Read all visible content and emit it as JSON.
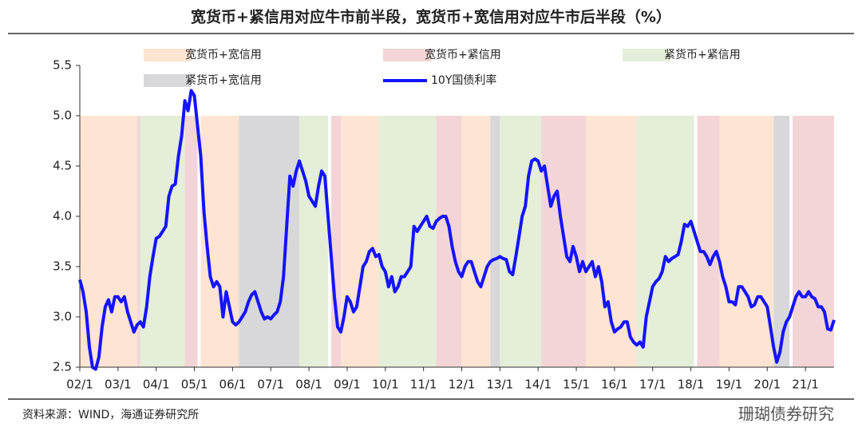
{
  "chart_data": {
    "type": "line",
    "title": "宽货币+紧信用对应牛市前半段，宽货币+宽信用对应牛市后半段（%）",
    "source": "资料来源：WIND，海通证券研究所",
    "watermark": "珊瑚债券研究",
    "categories": [
      "02/1",
      null,
      null,
      null,
      null,
      null,
      null,
      null,
      null,
      null,
      null,
      null,
      "03/1",
      null,
      null,
      null,
      null,
      null,
      null,
      null,
      null,
      null,
      null,
      null,
      "04/1",
      null,
      null,
      null,
      null,
      null,
      null,
      null,
      null,
      null,
      null,
      null,
      "05/1",
      null,
      null,
      null,
      null,
      null,
      null,
      null,
      null,
      null,
      null,
      null,
      "06/1",
      null,
      null,
      null,
      null,
      null,
      null,
      null,
      null,
      null,
      null,
      null,
      "07/1",
      null,
      null,
      null,
      null,
      null,
      null,
      null,
      null,
      null,
      null,
      null,
      "08/1",
      null,
      null,
      null,
      null,
      null,
      null,
      null,
      null,
      null,
      null,
      null,
      "09/1",
      null,
      null,
      null,
      null,
      null,
      null,
      null,
      null,
      null,
      null,
      null,
      "10/1",
      null,
      null,
      null,
      null,
      null,
      null,
      null,
      null,
      null,
      null,
      null,
      "11/1",
      null,
      null,
      null,
      null,
      null,
      null,
      null,
      null,
      null,
      null,
      null,
      "12/1",
      null,
      null,
      null,
      null,
      null,
      null,
      null,
      null,
      null,
      null,
      null,
      "13/1",
      null,
      null,
      null,
      null,
      null,
      null,
      null,
      null,
      null,
      null,
      null,
      "14/1",
      null,
      null,
      null,
      null,
      null,
      null,
      null,
      null,
      null,
      null,
      null,
      "15/1",
      null,
      null,
      null,
      null,
      null,
      null,
      null,
      null,
      null,
      null,
      null,
      "16/1",
      null,
      null,
      null,
      null,
      null,
      null,
      null,
      null,
      null,
      null,
      null,
      "17/1",
      null,
      null,
      null,
      null,
      null,
      null,
      null,
      null,
      null,
      null,
      null,
      "18/1",
      null,
      null,
      null,
      null,
      null,
      null,
      null,
      null,
      null,
      null,
      null,
      "19/1",
      null,
      null,
      null,
      null,
      null,
      null,
      null,
      null,
      null,
      null,
      null,
      "20/1",
      null,
      null,
      null,
      null,
      null,
      null,
      null,
      null,
      null,
      null,
      null,
      "21/1",
      null,
      null,
      null,
      null,
      null,
      null,
      null,
      null,
      null
    ],
    "series": [
      {
        "name": "10Y国债利率",
        "color": "#1414ff",
        "values": [
          3.37,
          3.25,
          3.05,
          2.7,
          2.5,
          2.48,
          2.6,
          2.9,
          3.1,
          3.17,
          3.05,
          3.2,
          3.2,
          3.15,
          3.2,
          3.05,
          2.95,
          2.85,
          2.92,
          2.95,
          2.9,
          3.1,
          3.4,
          3.6,
          3.78,
          3.8,
          3.85,
          3.9,
          4.2,
          4.3,
          4.32,
          4.6,
          4.8,
          5.15,
          5.05,
          5.25,
          5.2,
          4.9,
          4.6,
          4.05,
          3.7,
          3.4,
          3.3,
          3.35,
          3.3,
          3.0,
          3.25,
          3.1,
          2.95,
          2.92,
          2.95,
          3.0,
          3.05,
          3.15,
          3.22,
          3.25,
          3.15,
          3.05,
          2.98,
          3.0,
          2.98,
          3.02,
          3.05,
          3.15,
          3.4,
          3.9,
          4.4,
          4.3,
          4.45,
          4.55,
          4.45,
          4.35,
          4.2,
          4.15,
          4.1,
          4.3,
          4.45,
          4.4,
          4.0,
          3.6,
          3.2,
          2.9,
          2.85,
          3.0,
          3.2,
          3.15,
          3.05,
          3.1,
          3.3,
          3.5,
          3.55,
          3.65,
          3.68,
          3.6,
          3.62,
          3.5,
          3.45,
          3.3,
          3.4,
          3.25,
          3.3,
          3.4,
          3.4,
          3.45,
          3.5,
          3.9,
          3.85,
          3.9,
          3.95,
          4.0,
          3.9,
          3.88,
          3.95,
          3.98,
          4.0,
          4.0,
          3.9,
          3.7,
          3.55,
          3.45,
          3.4,
          3.5,
          3.55,
          3.55,
          3.45,
          3.35,
          3.3,
          3.4,
          3.5,
          3.55,
          3.57,
          3.58,
          3.6,
          3.58,
          3.57,
          3.45,
          3.42,
          3.6,
          3.8,
          4.0,
          4.1,
          4.4,
          4.55,
          4.57,
          4.55,
          4.45,
          4.5,
          4.3,
          4.1,
          4.2,
          4.25,
          4.0,
          3.8,
          3.6,
          3.55,
          3.7,
          3.6,
          3.45,
          3.55,
          3.45,
          3.5,
          3.55,
          3.4,
          3.5,
          3.35,
          3.1,
          3.15,
          2.95,
          2.85,
          2.88,
          2.9,
          2.95,
          2.95,
          2.8,
          2.75,
          2.72,
          2.75,
          2.7,
          3.0,
          3.15,
          3.3,
          3.35,
          3.38,
          3.45,
          3.6,
          3.55,
          3.58,
          3.6,
          3.62,
          3.75,
          3.92,
          3.9,
          3.95,
          3.85,
          3.75,
          3.65,
          3.65,
          3.6,
          3.52,
          3.6,
          3.65,
          3.55,
          3.4,
          3.3,
          3.15,
          3.15,
          3.12,
          3.3,
          3.3,
          3.25,
          3.2,
          3.1,
          3.12,
          3.2,
          3.2,
          3.15,
          3.1,
          2.9,
          2.7,
          2.55,
          2.65,
          2.85,
          2.95,
          3.0,
          3.1,
          3.2,
          3.25,
          3.2,
          3.2,
          3.25,
          3.2,
          3.18,
          3.1,
          3.1,
          3.05,
          2.88,
          2.87,
          2.97
        ]
      }
    ],
    "regimes": [
      {
        "name": "宽货币+宽信用",
        "color": "#fde4d3"
      },
      {
        "name": "宽货币+紧信用",
        "color": "#f3d5d7"
      },
      {
        "name": "紧货币+紧信用",
        "color": "#e4eed8"
      },
      {
        "name": "紧货币+宽信用",
        "color": "#d8d8da"
      }
    ],
    "regions": [
      {
        "regime": 0,
        "from": "02/1",
        "to": "03/7"
      },
      {
        "regime": 1,
        "from": "03/7",
        "to": "03/8"
      },
      {
        "regime": 2,
        "from": "03/8",
        "to": "04/10"
      },
      {
        "regime": 1,
        "from": "04/10",
        "to": "05/2"
      },
      {
        "regime": 0,
        "from": "05/3",
        "to": "06/3"
      },
      {
        "regime": 3,
        "from": "06/3",
        "to": "07/10"
      },
      {
        "regime": 2,
        "from": "07/10",
        "to": "08/7"
      },
      {
        "regime": 1,
        "from": "08/8",
        "to": "08/11"
      },
      {
        "regime": 0,
        "from": "08/11",
        "to": "09/11"
      },
      {
        "regime": 2,
        "from": "09/11",
        "to": "11/5"
      },
      {
        "regime": 1,
        "from": "11/5",
        "to": "12/1"
      },
      {
        "regime": 0,
        "from": "12/1",
        "to": "12/10"
      },
      {
        "regime": 3,
        "from": "12/10",
        "to": "13/1"
      },
      {
        "regime": 2,
        "from": "13/1",
        "to": "14/2"
      },
      {
        "regime": 1,
        "from": "14/2",
        "to": "15/4"
      },
      {
        "regime": 0,
        "from": "15/4",
        "to": "16/8"
      },
      {
        "regime": 2,
        "from": "16/8",
        "to": "18/2"
      },
      {
        "regime": 1,
        "from": "18/3",
        "to": "18/10"
      },
      {
        "regime": 0,
        "from": "18/10",
        "to": "20/3"
      },
      {
        "regime": 3,
        "from": "20/3",
        "to": "20/8"
      },
      {
        "regime": 1,
        "from": "20/9",
        "to": "21/10"
      }
    ],
    "shade_top": 5,
    "ylim": [
      2.5,
      5.5
    ],
    "yticks": [
      2.5,
      {
        "value": 3,
        "label": "3.0"
      },
      3.5,
      {
        "value": 4,
        "label": "4.0"
      },
      4.5,
      {
        "value": 5,
        "label": "5.0"
      },
      5.5
    ]
  }
}
